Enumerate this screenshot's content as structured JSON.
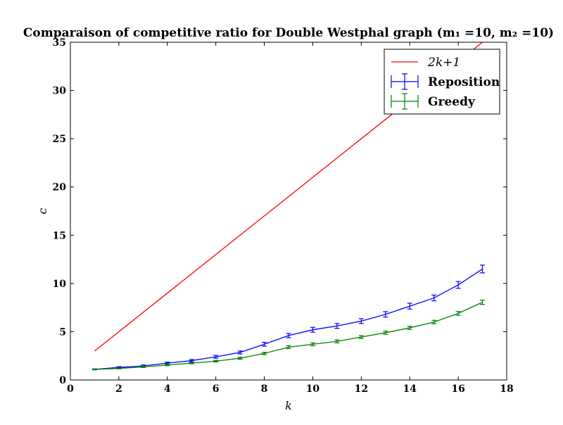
{
  "chart_data": {
    "type": "line",
    "title": "Comparaison of competitive ratio for Double Westphal graph (m₁ =10, m₂ =10)",
    "xlabel": "k",
    "ylabel": "c",
    "xlim": [
      0,
      18
    ],
    "ylim": [
      0,
      35
    ],
    "xticks": [
      0,
      2,
      4,
      6,
      8,
      10,
      12,
      14,
      16,
      18
    ],
    "yticks": [
      0,
      5,
      10,
      15,
      20,
      25,
      30,
      35
    ],
    "grid": false,
    "legend_position": "top-right",
    "series": [
      {
        "name": "2k+1",
        "color": "#ff0000",
        "error_bars": false,
        "x": [
          1,
          17
        ],
        "y": [
          3,
          35
        ]
      },
      {
        "name": "Reposition",
        "color": "#0000ff",
        "error_bars": true,
        "x": [
          1,
          2,
          3,
          4,
          5,
          6,
          7,
          8,
          9,
          10,
          11,
          12,
          13,
          14,
          15,
          16,
          17
        ],
        "y": [
          1.1,
          1.3,
          1.45,
          1.75,
          2.0,
          2.4,
          2.85,
          3.7,
          4.6,
          5.2,
          5.6,
          6.1,
          6.8,
          7.65,
          8.5,
          9.85,
          11.5
        ],
        "err": [
          0.05,
          0.08,
          0.1,
          0.1,
          0.12,
          0.15,
          0.15,
          0.2,
          0.22,
          0.25,
          0.25,
          0.25,
          0.28,
          0.3,
          0.3,
          0.35,
          0.4
        ]
      },
      {
        "name": "Greedy",
        "color": "#008000",
        "error_bars": true,
        "x": [
          1,
          2,
          3,
          4,
          5,
          6,
          7,
          8,
          9,
          10,
          11,
          12,
          13,
          14,
          15,
          16,
          17
        ],
        "y": [
          1.1,
          1.2,
          1.35,
          1.55,
          1.75,
          1.95,
          2.25,
          2.75,
          3.4,
          3.7,
          4.0,
          4.45,
          4.9,
          5.4,
          6.0,
          6.9,
          8.05
        ],
        "err": [
          0.04,
          0.05,
          0.06,
          0.07,
          0.07,
          0.08,
          0.1,
          0.12,
          0.15,
          0.15,
          0.15,
          0.15,
          0.17,
          0.17,
          0.18,
          0.2,
          0.22
        ]
      }
    ]
  }
}
